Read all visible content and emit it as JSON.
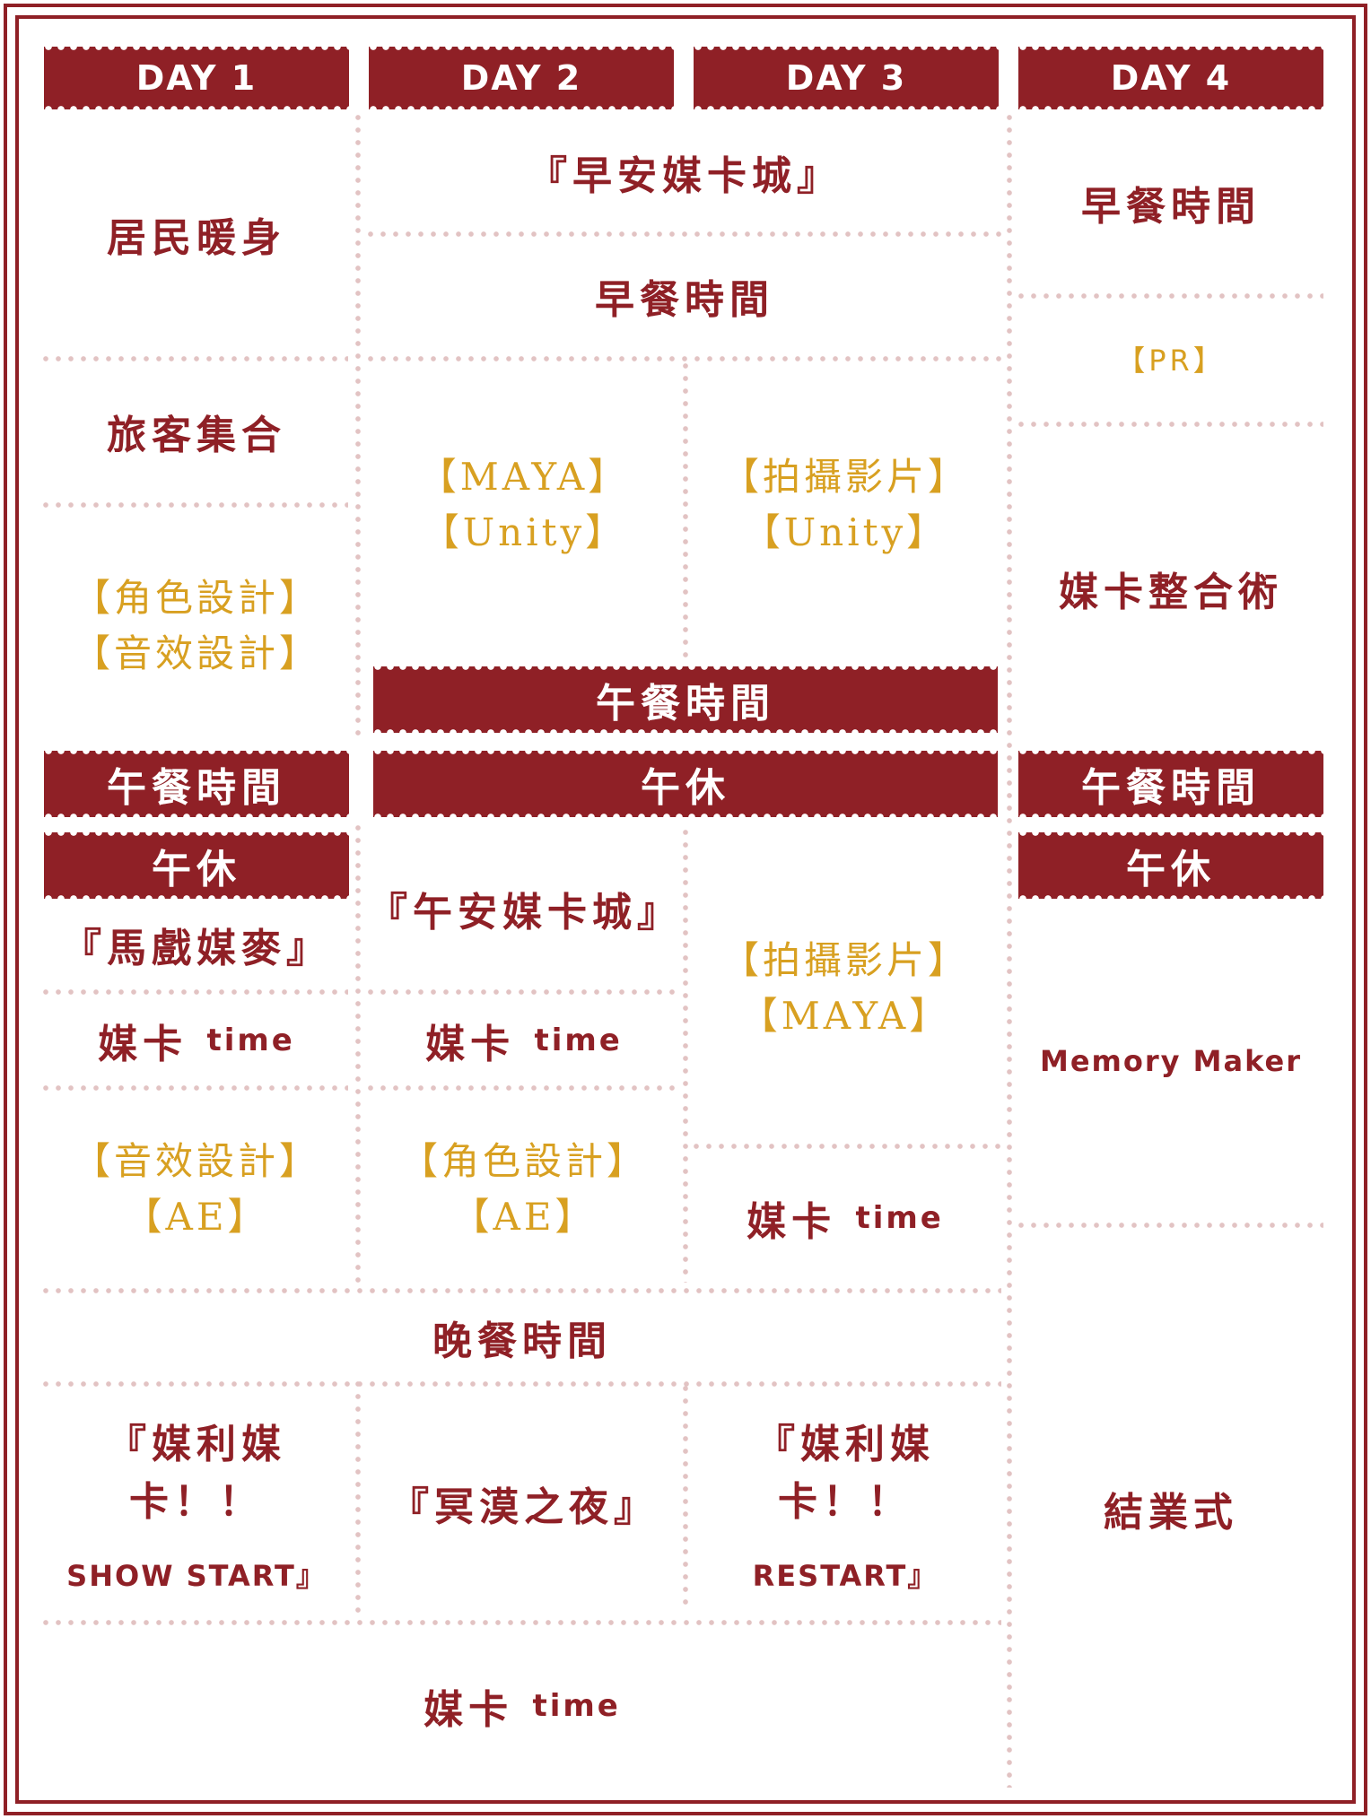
{
  "headers": [
    "DAY 1",
    "DAY 2",
    "DAY 3",
    "DAY 4"
  ],
  "day1": {
    "warmup": "居民暖身",
    "gather": "旅客集合",
    "workshop_a": [
      "【角色設計】",
      "【音效設計】"
    ],
    "lunch": "午餐時間",
    "nap": "午休",
    "circus": "『馬戲媒麥』",
    "mk_time": "媒卡",
    "mk_time_en": "time",
    "workshop_b": [
      "【音效設計】",
      "【AE】"
    ],
    "show": [
      "『媒利媒卡！！",
      "SHOW START』"
    ]
  },
  "day23": {
    "morning_town": "『早安媒卡城』",
    "breakfast": "早餐時間",
    "d2_workshop": [
      "【MAYA】",
      "【Unity】"
    ],
    "d3_workshop": [
      "【拍攝影片】",
      "【Unity】"
    ],
    "lunch": "午餐時間",
    "nap": "午休",
    "afternoon_town": "『午安媒卡城』",
    "d2_mk_time": "媒卡",
    "d2_mk_time_en": "time",
    "d2_workshop_b": [
      "【角色設計】",
      "【AE】"
    ],
    "d3_workshop_b": [
      "【拍攝影片】",
      "【MAYA】"
    ],
    "d3_mk_time": "媒卡",
    "d3_mk_time_en": "time",
    "dinner": "晚餐時間",
    "d2_night": "『冥漠之夜』",
    "d3_night": [
      "『媒利媒卡！！",
      "RESTART』"
    ],
    "final_mk_time": "媒卡",
    "final_mk_time_en": "time"
  },
  "day4": {
    "breakfast": "早餐時間",
    "pr": "【PR】",
    "integration": "媒卡整合術",
    "lunch": "午餐時間",
    "nap": "午休",
    "memory": "Memory Maker",
    "closing": "結業式"
  },
  "colors": {
    "primary": "#8f2026",
    "gold": "#d8a021",
    "dots": "#e2c3c3"
  }
}
